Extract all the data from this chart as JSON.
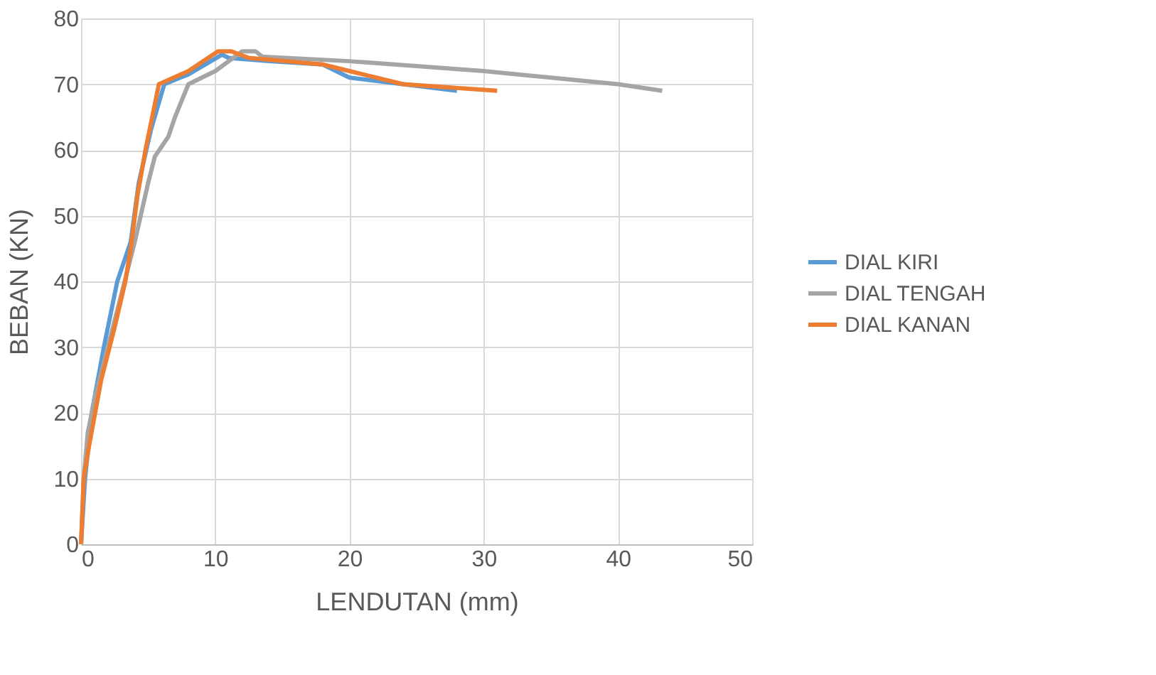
{
  "chart_data": {
    "type": "line",
    "xlabel": "LENDUTAN (mm)",
    "ylabel": "BEBAN (KN)",
    "xlim": [
      0,
      50
    ],
    "xticks": [
      0,
      10,
      20,
      30,
      40,
      50
    ],
    "ylim": [
      0,
      80
    ],
    "yticks": [
      0,
      10,
      20,
      30,
      40,
      50,
      60,
      70,
      80
    ],
    "grid": true,
    "legend": "right",
    "marker": "none",
    "line_style": "solid",
    "series": [
      {
        "name": "DIAL KIRI",
        "color": "#5b9bd5",
        "x": [
          0,
          0.3,
          0.8,
          1.7,
          2.7,
          3.7,
          4.3,
          5.2,
          6.2,
          8,
          10.5,
          11,
          14,
          18,
          20,
          24,
          28
        ],
        "values": [
          0,
          10,
          20,
          30,
          40,
          46,
          55,
          63,
          70,
          71.5,
          74.5,
          74,
          73.5,
          73,
          71,
          70,
          69
        ]
      },
      {
        "name": "DIAL TENGAH",
        "color": "#a5a5a5",
        "x": [
          0,
          0.2,
          0.5,
          1,
          2,
          3,
          4,
          5,
          5.5,
          6.5,
          7,
          8,
          10,
          11,
          12,
          13,
          13.5,
          20,
          30,
          35,
          40,
          43.3
        ],
        "values": [
          0,
          10,
          17,
          22,
          30,
          38,
          46,
          55,
          59,
          62,
          65,
          70,
          72,
          73.5,
          75,
          75,
          74.2,
          73.5,
          72,
          71,
          70,
          69
        ]
      },
      {
        "name": "DIAL KANAN",
        "color": "#ed7d31",
        "x": [
          0,
          0.2,
          0.6,
          1.5,
          2.5,
          3.3,
          3.7,
          4.2,
          4.8,
          5.8,
          8,
          10.2,
          11.2,
          12.5,
          18,
          20,
          24,
          31
        ],
        "values": [
          0,
          10,
          15,
          25,
          33,
          40,
          45,
          53,
          60,
          70,
          72,
          75,
          75,
          74,
          73,
          72,
          70,
          69
        ]
      }
    ]
  }
}
